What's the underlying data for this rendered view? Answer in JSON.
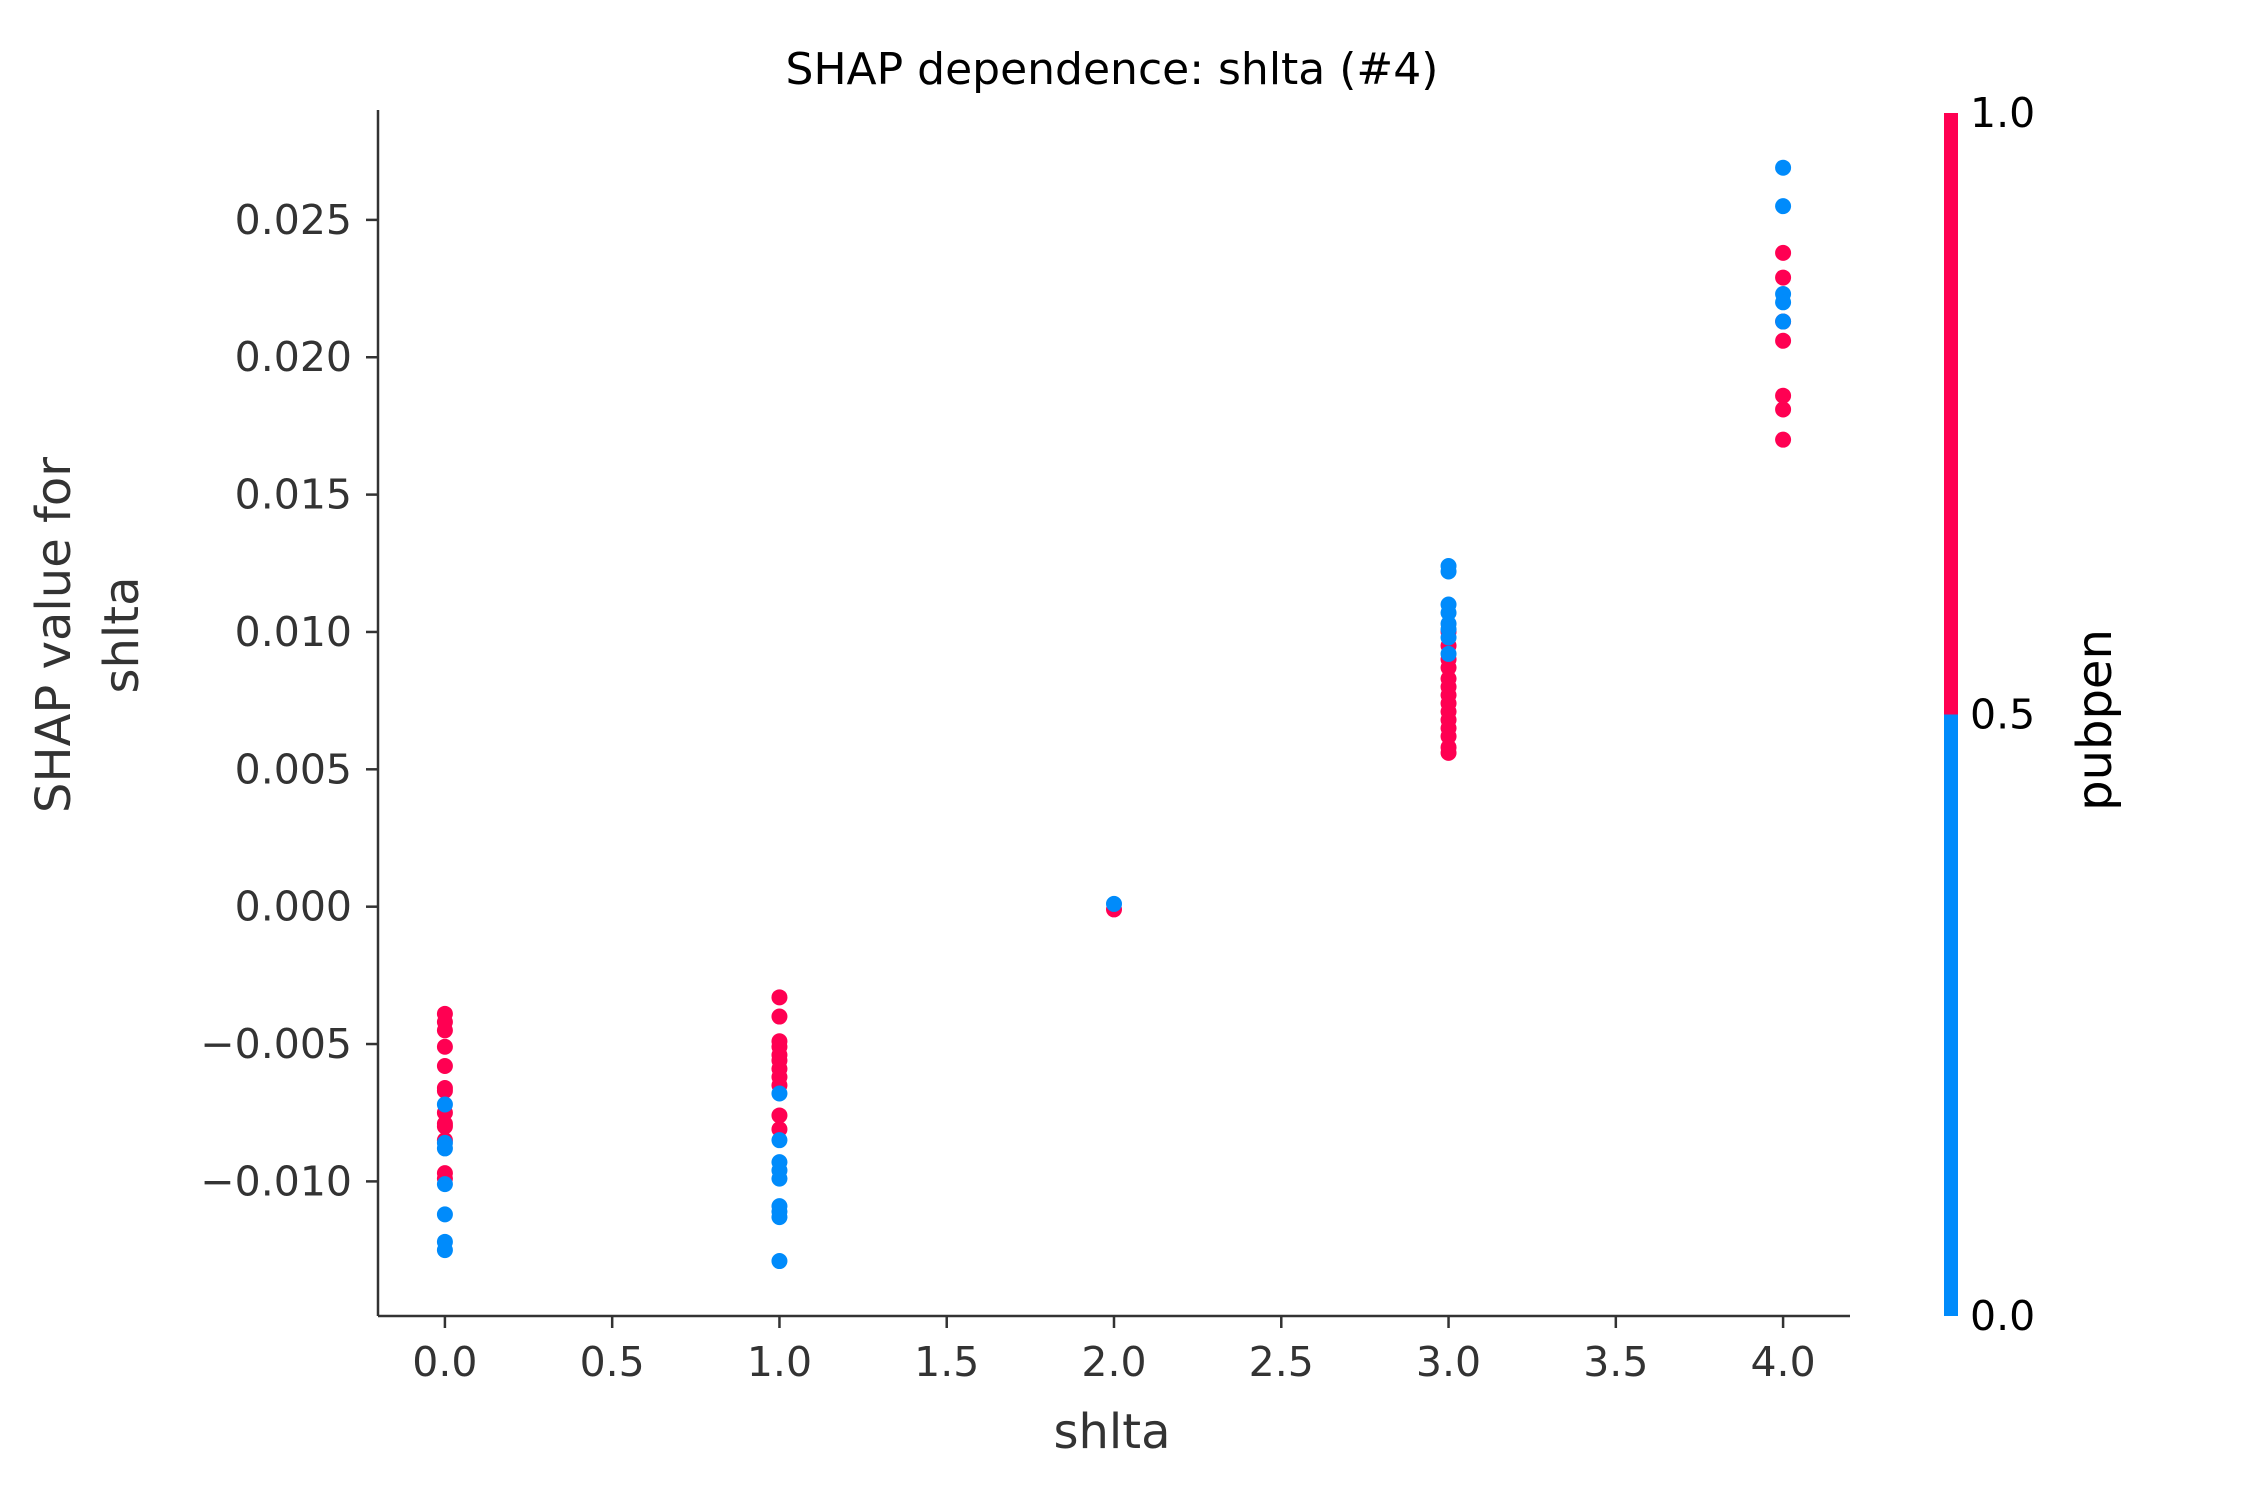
{
  "chart_data": {
    "type": "scatter",
    "title": "SHAP dependence: shlta (#4)",
    "xlabel": "shlta",
    "ylabel": [
      "SHAP value for",
      "shlta"
    ],
    "xlim": [
      -0.2,
      4.2
    ],
    "ylim": [
      -0.0149,
      0.029
    ],
    "xticks": [
      0.0,
      0.5,
      1.0,
      1.5,
      2.0,
      2.5,
      3.0,
      3.5,
      4.0
    ],
    "xtick_labels": [
      "0.0",
      "0.5",
      "1.0",
      "1.5",
      "2.0",
      "2.5",
      "3.0",
      "3.5",
      "4.0"
    ],
    "yticks": [
      -0.01,
      -0.005,
      0.0,
      0.005,
      0.01,
      0.015,
      0.02,
      0.025
    ],
    "ytick_labels": [
      "−0.010",
      "−0.005",
      "0.000",
      "0.005",
      "0.010",
      "0.015",
      "0.020",
      "0.025"
    ],
    "colorbar": {
      "label": "pubpen",
      "ticks": [
        "0.0",
        "0.5",
        "1.0"
      ],
      "range": [
        0.0,
        1.0
      ],
      "low_color": "#008bfb",
      "high_color": "#ff0052"
    },
    "series": [
      {
        "name": "pubpen = 1",
        "color": "#ff0052",
        "points": [
          [
            0,
            -0.0039
          ],
          [
            0,
            -0.0042
          ],
          [
            0,
            -0.0045
          ],
          [
            0,
            -0.0051
          ],
          [
            0,
            -0.0058
          ],
          [
            0,
            -0.0066
          ],
          [
            0,
            -0.0067
          ],
          [
            0,
            -0.0075
          ],
          [
            0,
            -0.0079
          ],
          [
            0,
            -0.008
          ],
          [
            0,
            -0.0085
          ],
          [
            0,
            -0.0097
          ],
          [
            0,
            -0.0099
          ],
          [
            1,
            -0.0033
          ],
          [
            1,
            -0.004
          ],
          [
            1,
            -0.0049
          ],
          [
            1,
            -0.0051
          ],
          [
            1,
            -0.0054
          ],
          [
            1,
            -0.0056
          ],
          [
            1,
            -0.0059
          ],
          [
            1,
            -0.0062
          ],
          [
            1,
            -0.0065
          ],
          [
            1,
            -0.0076
          ],
          [
            1,
            -0.0081
          ],
          [
            2,
            -0.0001
          ],
          [
            3,
            0.0056
          ],
          [
            3,
            0.0058
          ],
          [
            3,
            0.0062
          ],
          [
            3,
            0.0065
          ],
          [
            3,
            0.0068
          ],
          [
            3,
            0.0071
          ],
          [
            3,
            0.0074
          ],
          [
            3,
            0.0077
          ],
          [
            3,
            0.008
          ],
          [
            3,
            0.0083
          ],
          [
            3,
            0.0087
          ],
          [
            3,
            0.009
          ],
          [
            3,
            0.0095
          ],
          [
            3,
            0.01
          ],
          [
            4,
            0.0238
          ],
          [
            4,
            0.0229
          ],
          [
            4,
            0.0213
          ],
          [
            4,
            0.0206
          ],
          [
            4,
            0.0186
          ],
          [
            4,
            0.0181
          ],
          [
            4,
            0.017
          ]
        ]
      },
      {
        "name": "pubpen = 0",
        "color": "#008bfb",
        "points": [
          [
            0,
            -0.0072
          ],
          [
            0,
            -0.0086
          ],
          [
            0,
            -0.0088
          ],
          [
            0,
            -0.0101
          ],
          [
            0,
            -0.0112
          ],
          [
            0,
            -0.0122
          ],
          [
            0,
            -0.0125
          ],
          [
            1,
            -0.0068
          ],
          [
            1,
            -0.0085
          ],
          [
            1,
            -0.0093
          ],
          [
            1,
            -0.0096
          ],
          [
            1,
            -0.0099
          ],
          [
            1,
            -0.0109
          ],
          [
            1,
            -0.0111
          ],
          [
            1,
            -0.0113
          ],
          [
            1,
            -0.0129
          ],
          [
            2,
            0.0001
          ],
          [
            3,
            0.0124
          ],
          [
            3,
            0.0122
          ],
          [
            3,
            0.011
          ],
          [
            3,
            0.0107
          ],
          [
            3,
            0.0103
          ],
          [
            3,
            0.0101
          ],
          [
            3,
            0.0098
          ],
          [
            3,
            0.0092
          ],
          [
            4,
            0.0269
          ],
          [
            4,
            0.0255
          ],
          [
            4,
            0.0223
          ],
          [
            4,
            0.022
          ],
          [
            4,
            0.0213
          ]
        ]
      }
    ]
  }
}
